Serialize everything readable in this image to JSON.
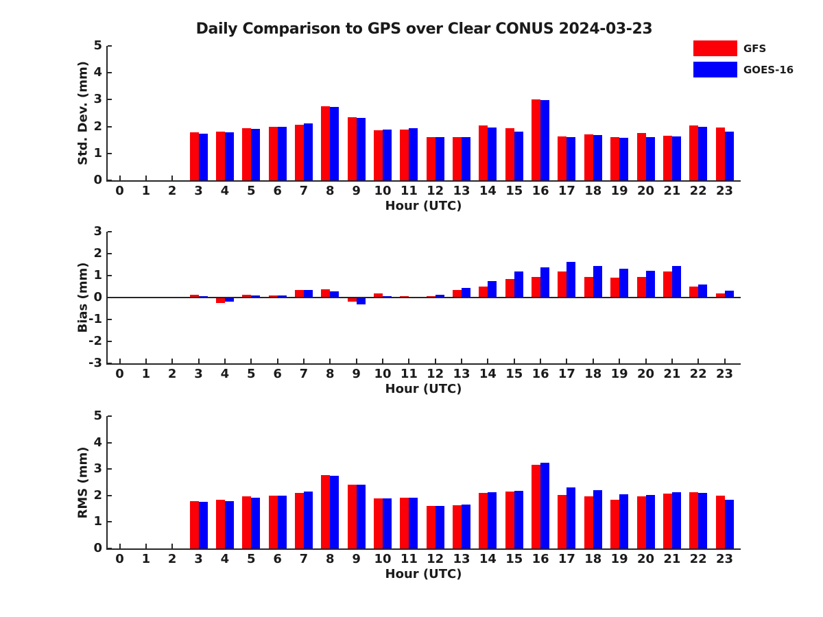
{
  "title": "Daily Comparison to GPS over Clear CONUS 2024-03-23",
  "legend": {
    "position": "top-right",
    "items": [
      {
        "label": "GFS",
        "color": "#fb0006"
      },
      {
        "label": "GOES-16",
        "color": "#0000fb"
      }
    ]
  },
  "chart_data": [
    {
      "type": "bar",
      "panel": "std-dev",
      "ylabel": "Std. Dev. (mm)",
      "xlabel": "Hour (UTC)",
      "ylim": [
        0,
        5
      ],
      "yticks": [
        0,
        1,
        2,
        3,
        4,
        5
      ],
      "grid": false,
      "categories": [
        "0",
        "1",
        "2",
        "3",
        "4",
        "5",
        "6",
        "7",
        "8",
        "9",
        "10",
        "11",
        "12",
        "13",
        "14",
        "15",
        "16",
        "17",
        "18",
        "19",
        "20",
        "21",
        "22",
        "23"
      ],
      "series": [
        {
          "name": "GFS",
          "color": "#fb0006",
          "values": [
            null,
            null,
            null,
            1.78,
            1.82,
            1.95,
            2.0,
            2.07,
            2.75,
            2.35,
            1.85,
            1.9,
            1.6,
            1.6,
            2.03,
            1.95,
            3.02,
            1.63,
            1.72,
            1.6,
            1.75,
            1.65,
            2.05,
            1.97
          ]
        },
        {
          "name": "GOES-16",
          "color": "#0000fb",
          "values": [
            null,
            null,
            null,
            1.73,
            1.78,
            1.92,
            1.98,
            2.12,
            2.72,
            2.32,
            1.88,
            1.93,
            1.6,
            1.6,
            1.97,
            1.8,
            2.98,
            1.6,
            1.68,
            1.58,
            1.6,
            1.62,
            2.0,
            1.82
          ]
        }
      ]
    },
    {
      "type": "bar",
      "panel": "bias",
      "ylabel": "Bias (mm)",
      "xlabel": "Hour (UTC)",
      "ylim": [
        -3,
        3
      ],
      "yticks": [
        -3,
        -2,
        -1,
        0,
        1,
        2,
        3
      ],
      "grid": false,
      "zero_line": true,
      "categories": [
        "0",
        "1",
        "2",
        "3",
        "4",
        "5",
        "6",
        "7",
        "8",
        "9",
        "10",
        "11",
        "12",
        "13",
        "14",
        "15",
        "16",
        "17",
        "18",
        "19",
        "20",
        "21",
        "22",
        "23"
      ],
      "series": [
        {
          "name": "GFS",
          "color": "#fb0006",
          "values": [
            null,
            null,
            null,
            0.13,
            -0.25,
            0.13,
            0.08,
            0.33,
            0.38,
            -0.2,
            0.2,
            0.05,
            0.07,
            0.35,
            0.5,
            0.85,
            0.95,
            1.2,
            0.95,
            0.9,
            0.95,
            1.2,
            0.5,
            0.2
          ]
        },
        {
          "name": "GOES-16",
          "color": "#0000fb",
          "values": [
            null,
            null,
            null,
            0.07,
            -0.18,
            0.08,
            0.1,
            0.35,
            0.28,
            -0.3,
            0.05,
            0.02,
            0.12,
            0.45,
            0.75,
            1.2,
            1.37,
            1.62,
            1.45,
            1.3,
            1.23,
            1.45,
            0.6,
            0.3
          ]
        }
      ]
    },
    {
      "type": "bar",
      "panel": "rms",
      "ylabel": "RMS (mm)",
      "xlabel": "Hour (UTC)",
      "ylim": [
        0,
        5
      ],
      "yticks": [
        0,
        1,
        2,
        3,
        4,
        5
      ],
      "grid": false,
      "categories": [
        "0",
        "1",
        "2",
        "3",
        "4",
        "5",
        "6",
        "7",
        "8",
        "9",
        "10",
        "11",
        "12",
        "13",
        "14",
        "15",
        "16",
        "17",
        "18",
        "19",
        "20",
        "21",
        "22",
        "23"
      ],
      "series": [
        {
          "name": "GFS",
          "color": "#fb0006",
          "values": [
            null,
            null,
            null,
            1.78,
            1.85,
            1.97,
            2.0,
            2.1,
            2.78,
            2.4,
            1.88,
            1.93,
            1.6,
            1.63,
            2.1,
            2.15,
            3.15,
            2.03,
            1.97,
            1.85,
            1.97,
            2.08,
            2.12,
            2.0
          ]
        },
        {
          "name": "GOES-16",
          "color": "#0000fb",
          "values": [
            null,
            null,
            null,
            1.75,
            1.8,
            1.93,
            2.0,
            2.15,
            2.75,
            2.4,
            1.9,
            1.93,
            1.6,
            1.67,
            2.12,
            2.18,
            3.25,
            2.3,
            2.2,
            2.05,
            2.02,
            2.13,
            2.1,
            1.85
          ]
        }
      ]
    }
  ]
}
